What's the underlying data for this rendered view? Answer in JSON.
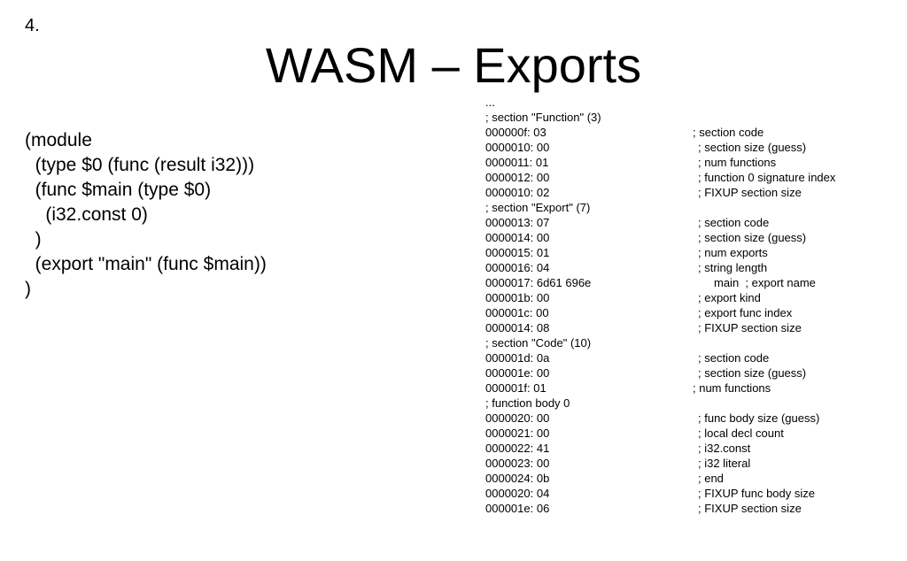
{
  "slide": {
    "number": "4.",
    "title": "WASM – Exports"
  },
  "wat_code": [
    "(module",
    "  (type $0 (func (result i32)))",
    "  (func $main (type $0)",
    "    (i32.const 0)",
    "  )",
    "  (export \"main\" (func $main))",
    ")"
  ],
  "hex_dump": [
    {
      "left": "...",
      "right": ""
    },
    {
      "left": "; section \"Function\" (3)",
      "right": ""
    },
    {
      "left": "000000f: 03",
      "right": "; section code"
    },
    {
      "left": "0000010: 00",
      "right": "; section size (guess)"
    },
    {
      "left": "0000011: 01",
      "right": "; num functions"
    },
    {
      "left": "0000012: 00",
      "right": "; function 0 signature index"
    },
    {
      "left": "0000010: 02",
      "right": "; FIXUP section size"
    },
    {
      "left": "; section \"Export\" (7)",
      "right": ""
    },
    {
      "left": "0000013: 07",
      "right": "; section code"
    },
    {
      "left": "0000014: 00",
      "right": "; section size (guess)"
    },
    {
      "left": "0000015: 01",
      "right": "; num exports"
    },
    {
      "left": "0000016: 04",
      "right": "; string length"
    },
    {
      "left": "0000017: 6d61 696e",
      "right": "main  ; export name"
    },
    {
      "left": "000001b: 00",
      "right": "; export kind"
    },
    {
      "left": "000001c: 00",
      "right": "; export func index"
    },
    {
      "left": "0000014: 08",
      "right": "; FIXUP section size"
    },
    {
      "left": "; section \"Code\" (10)",
      "right": ""
    },
    {
      "left": "000001d: 0a",
      "right": "; section code"
    },
    {
      "left": "000001e: 00",
      "right": "; section size (guess)"
    },
    {
      "left": "000001f: 01",
      "right": "; num functions"
    },
    {
      "left": "; function body 0",
      "right": ""
    },
    {
      "left": "0000020: 00",
      "right": "; func body size (guess)"
    },
    {
      "left": "0000021: 00",
      "right": "; local decl count"
    },
    {
      "left": "0000022: 41",
      "right": "; i32.const"
    },
    {
      "left": "0000023: 00",
      "right": "; i32 literal"
    },
    {
      "left": "0000024: 0b",
      "right": "; end"
    },
    {
      "left": "0000020: 04",
      "right": "; FIXUP func body size"
    },
    {
      "left": "000001e: 06",
      "right": "; FIXUP section size"
    }
  ]
}
